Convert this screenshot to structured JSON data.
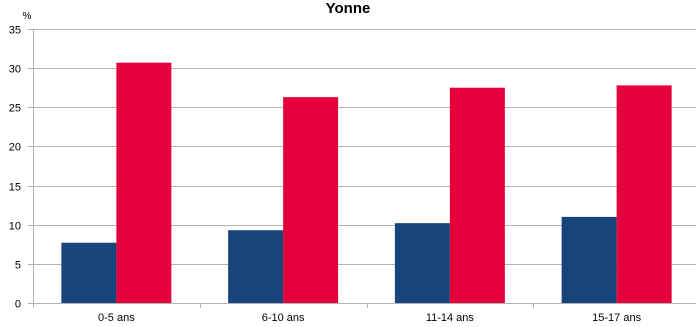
{
  "chart_data": {
    "type": "bar",
    "title": "Yonne",
    "ylabel": "%",
    "xlabel": "",
    "categories": [
      "0-5 ans",
      "6-10 ans",
      "11-14 ans",
      "15-17 ans"
    ],
    "series": [
      {
        "values": [
          7.7,
          9.3,
          10.2,
          11.0
        ]
      },
      {
        "values": [
          30.7,
          26.3,
          27.5,
          27.8
        ]
      }
    ],
    "ylim": [
      0,
      35
    ],
    "yticks": [
      0,
      5,
      10,
      15,
      20,
      25,
      30,
      35
    ],
    "grid": true,
    "legend": "none",
    "colors": [
      "#16447b",
      "#e4003b"
    ]
  }
}
